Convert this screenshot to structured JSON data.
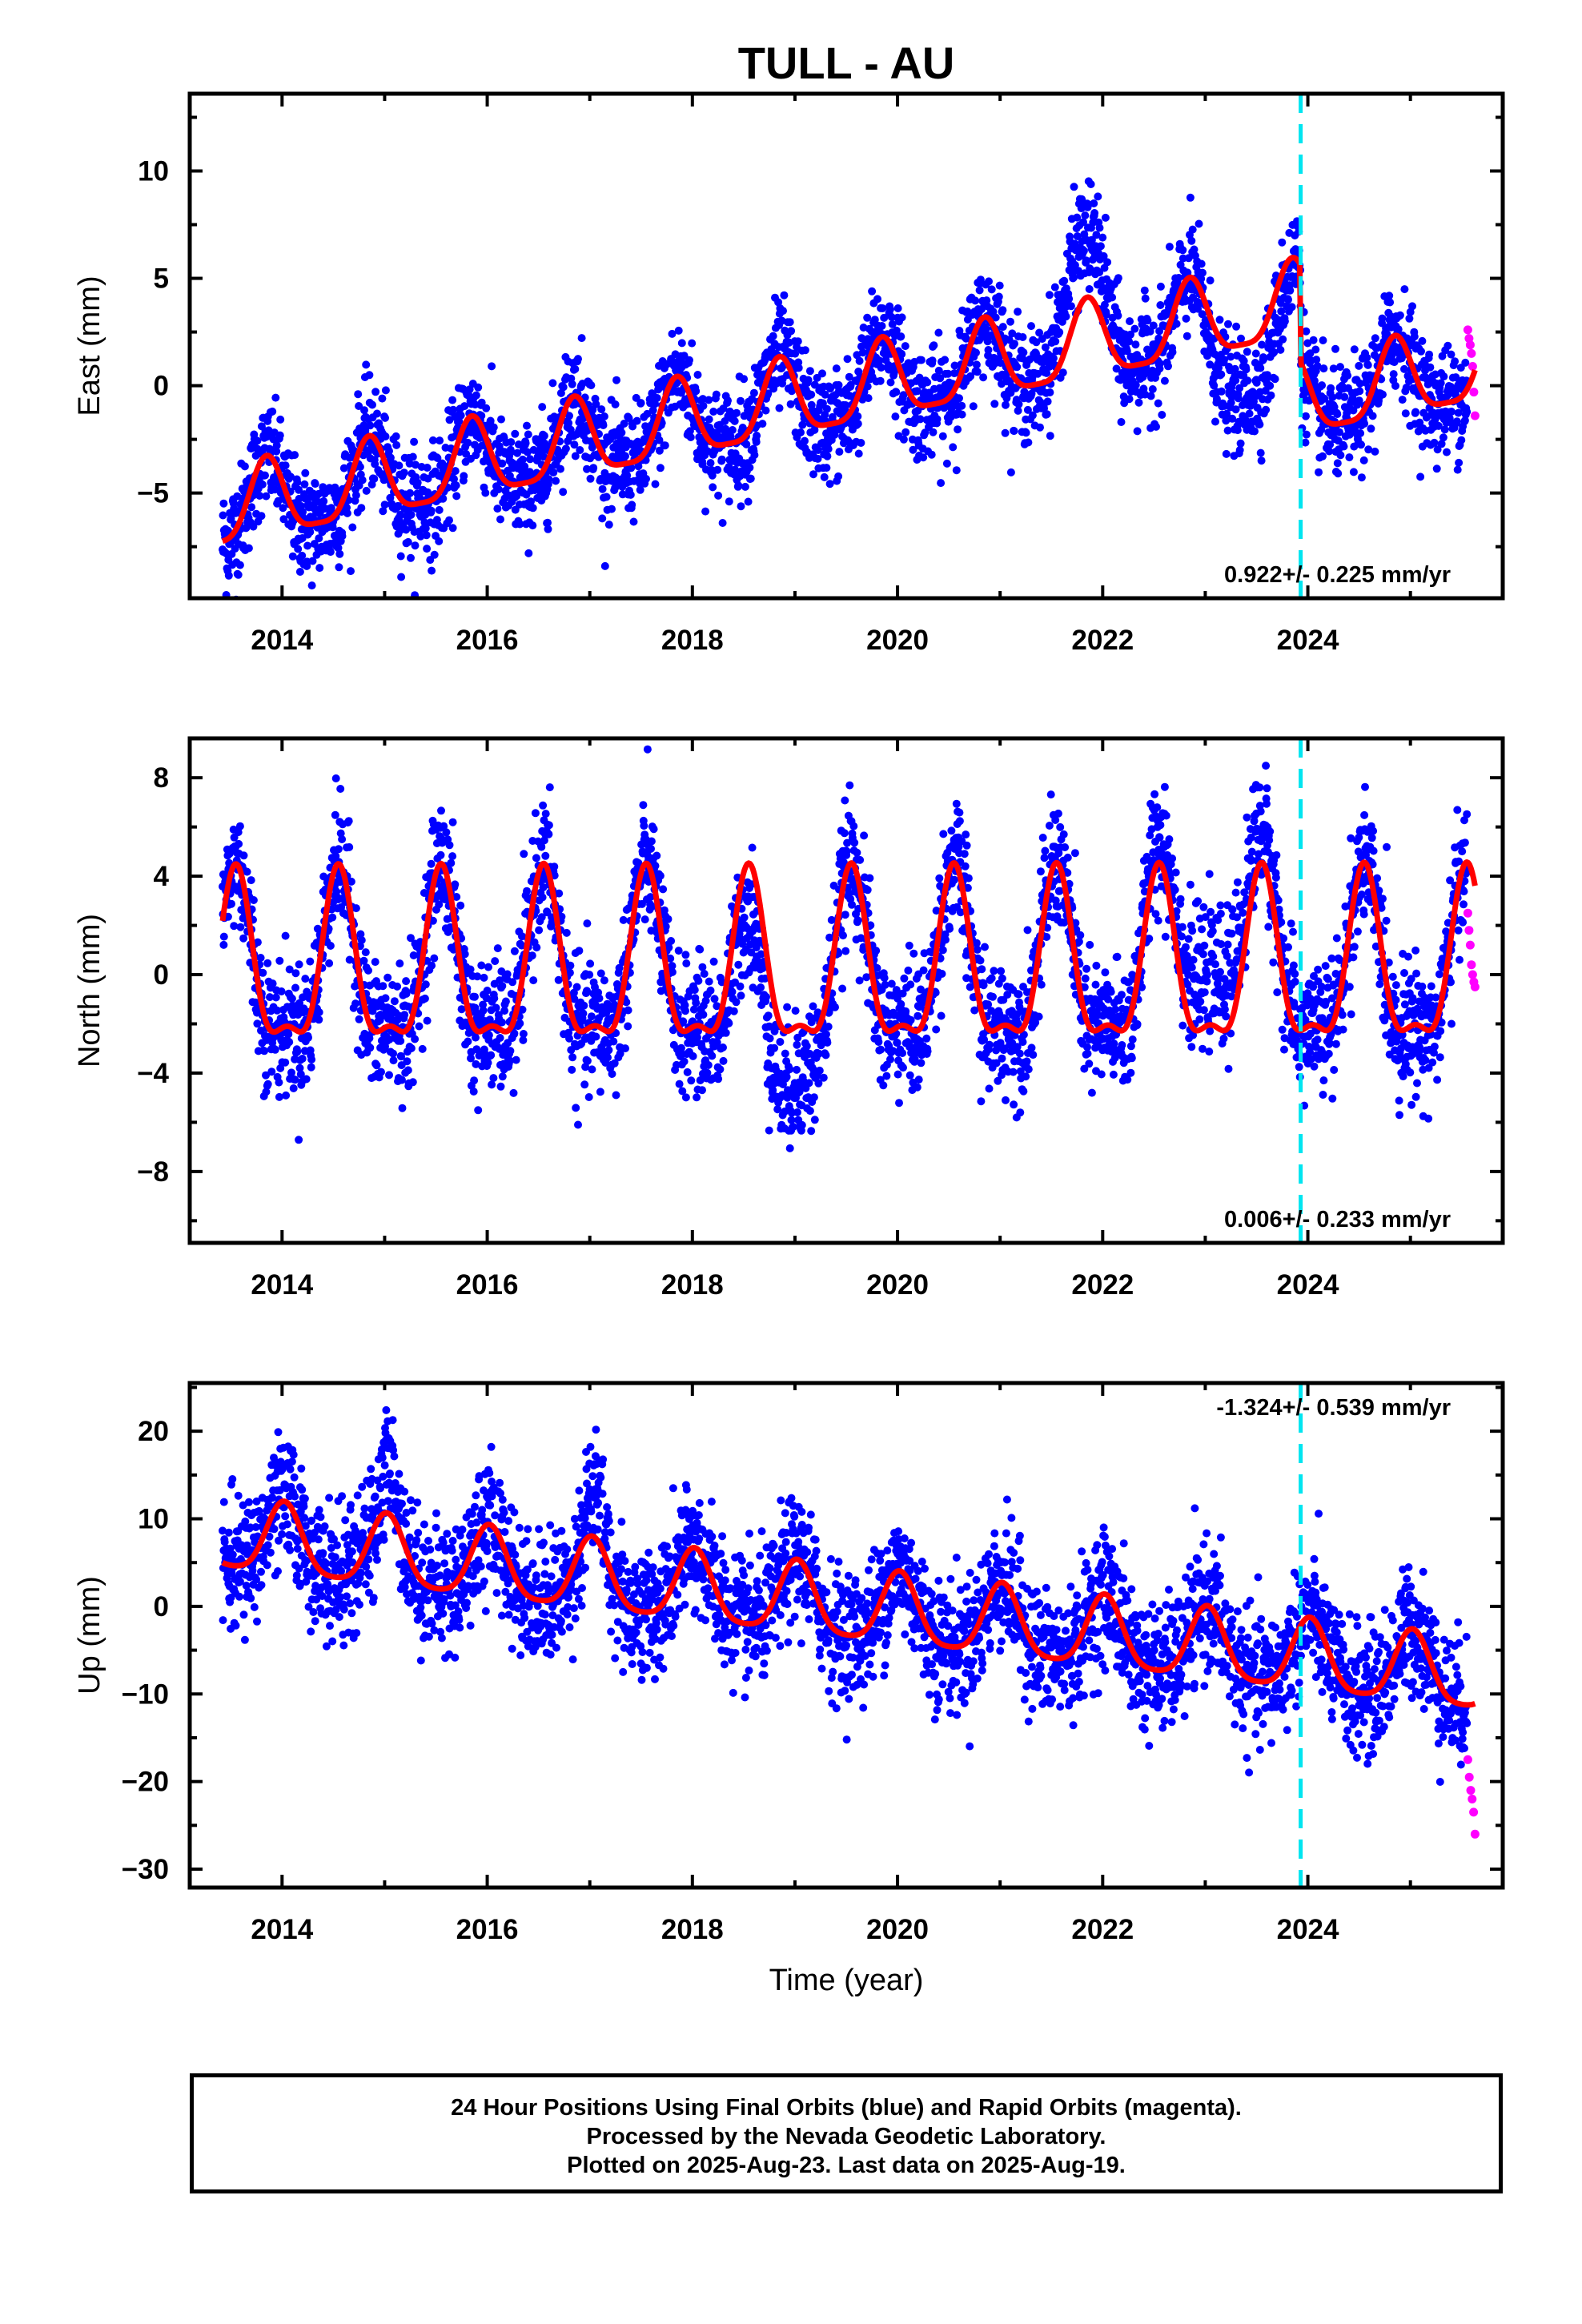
{
  "title": "TULL - AU",
  "colors": {
    "final_orbits": "#0000ff",
    "rapid_orbits": "#ff00ff",
    "model_fit": "#ff0000",
    "event_line": "#00e5f0",
    "frame": "#000000"
  },
  "xlabel": "Time (year)",
  "footer": {
    "line1": "24 Hour Positions Using Final Orbits (blue) and Rapid Orbits (magenta).",
    "line2": "Processed by the Nevada Geodetic Laboratory.",
    "line3": "Plotted on 2025-Aug-23. Last data on 2025-Aug-19."
  },
  "chart_data": [
    {
      "type": "scatter",
      "component": "east",
      "ylabel": "East (mm)",
      "xlim": [
        2013.1,
        2025.9
      ],
      "ylim": [
        -9.9,
        13.6
      ],
      "xticks": [
        2014,
        2016,
        2018,
        2020,
        2022,
        2024
      ],
      "yticks": [
        -5,
        0,
        5,
        10
      ],
      "rate_label": "0.922+/- 0.225 mm/yr",
      "rate_label_position": "bottom-right",
      "event_line_x": 2023.93,
      "data_range": [
        2013.42,
        2025.63
      ],
      "model": {
        "trend_mm_per_yr": 0.922,
        "offset_at_start": -5.9,
        "annual_amplitude": 1.8,
        "annual_peak_month_fraction": 0.85,
        "semiannual_amplitude": 0.45,
        "step_at_event": -6.5
      },
      "series": [
        {
          "name": "Final Orbits (blue)",
          "x_range": [
            2013.42,
            2025.55
          ],
          "scatter_sd": 1.25,
          "anomalies": [
            {
              "from": 2021.4,
              "to": 2022.2,
              "add": 3.0
            },
            {
              "from": 2022.9,
              "to": 2023.9,
              "add": -2.5
            }
          ]
        },
        {
          "name": "Rapid Orbits (magenta)",
          "x_range": [
            2025.56,
            2025.63
          ],
          "values": [
            2.6,
            2.2,
            1.9,
            1.5,
            0.9,
            -0.3,
            -1.4
          ]
        }
      ]
    },
    {
      "type": "scatter",
      "component": "north",
      "ylabel": "North (mm)",
      "xlim": [
        2013.1,
        2025.9
      ],
      "ylim": [
        -10.9,
        9.6
      ],
      "xticks": [
        2014,
        2016,
        2018,
        2020,
        2022,
        2024
      ],
      "yticks": [
        -8,
        -4,
        0,
        4,
        8
      ],
      "rate_label": "0.006+/- 0.233 mm/yr",
      "rate_label_position": "bottom-right",
      "event_line_x": 2023.93,
      "data_range": [
        2013.42,
        2025.63
      ],
      "model": {
        "trend_mm_per_yr": 0.006,
        "offset_at_start": 0.0,
        "annual_amplitude": 3.3,
        "annual_peak_month_fraction": 0.55,
        "semiannual_amplitude": 1.2
      },
      "series": [
        {
          "name": "Final Orbits (blue)",
          "x_range": [
            2013.42,
            2025.55
          ],
          "scatter_sd": 1.3,
          "anomalies": [
            {
              "from": 2018.2,
              "to": 2019.4,
              "add": -2.5
            },
            {
              "from": 2022.3,
              "to": 2023.9,
              "add": 2.0
            }
          ]
        },
        {
          "name": "Rapid Orbits (magenta)",
          "x_range": [
            2025.56,
            2025.63
          ],
          "values": [
            2.5,
            1.8,
            1.2,
            0.4,
            0.0,
            -0.3,
            -0.5
          ]
        }
      ]
    },
    {
      "type": "scatter",
      "component": "up",
      "ylabel": "Up (mm)",
      "xlim": [
        2013.1,
        2025.9
      ],
      "ylim": [
        -32.1,
        25.5
      ],
      "xticks": [
        2014,
        2016,
        2018,
        2020,
        2022,
        2024
      ],
      "yticks": [
        -30,
        -20,
        -10,
        0,
        10,
        20
      ],
      "rate_label": "-1.324+/- 0.539 mm/yr",
      "rate_label_position": "top-right",
      "event_line_x": 2023.93,
      "data_range": [
        2013.42,
        2025.63
      ],
      "model": {
        "trend_mm_per_yr": -1.324,
        "offset_at_start": 8.0,
        "annual_amplitude": 4.0,
        "annual_peak_month_fraction": 0.02,
        "semiannual_amplitude": 0.8
      },
      "series": [
        {
          "name": "Final Orbits (blue)",
          "x_range": [
            2013.42,
            2025.55
          ],
          "scatter_sd": 3.6,
          "anomalies": [
            {
              "from": 2014.9,
              "to": 2015.2,
              "add": 5.0
            },
            {
              "from": 2016.9,
              "to": 2017.2,
              "add": 5.0
            }
          ]
        },
        {
          "name": "Rapid Orbits (magenta)",
          "x_range": [
            2025.56,
            2025.63
          ],
          "values": [
            -17.5,
            -19.5,
            -21.0,
            -22.0,
            -23.5,
            -26.0
          ]
        }
      ]
    }
  ]
}
